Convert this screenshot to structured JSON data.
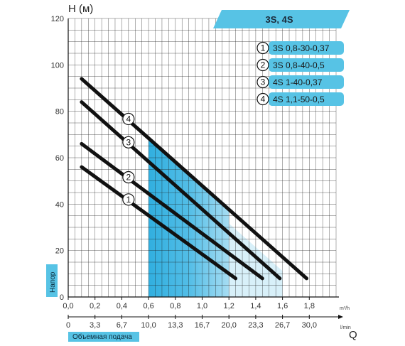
{
  "chart_data": {
    "type": "line",
    "title": "3S, 4S",
    "ylabel": "H (м)",
    "xlabel_side": "Q",
    "x_unit_top": "m³/h",
    "x_unit_bottom": "l/min",
    "ylim": [
      0,
      120
    ],
    "xlim": [
      0,
      2.0
    ],
    "y_ticks": [
      "0",
      "20",
      "40",
      "60",
      "80",
      "100",
      "120"
    ],
    "x_ticks_top": [
      "0,0",
      "0,2",
      "0,4",
      "0,6",
      "0,8",
      "1,0",
      "1,2",
      "1,4",
      "1,6",
      "1,8"
    ],
    "x_ticks_bottom": [
      "0",
      "3,3",
      "6,7",
      "10,0",
      "13,3",
      "16,7",
      "20,0",
      "23,3",
      "26,7",
      "30,0"
    ],
    "y_side_label": "Напор",
    "x_side_label": "Объемная подача",
    "grid": true,
    "series": [
      {
        "id": "1",
        "name": "3S 0,8-30-0,37",
        "x": [
          0.1,
          1.25
        ],
        "y": [
          56,
          8
        ]
      },
      {
        "id": "2",
        "name": "3S 0,8-40-0,5",
        "x": [
          0.1,
          1.45
        ],
        "y": [
          66,
          8
        ]
      },
      {
        "id": "3",
        "name": "4S 1-40-0,37",
        "x": [
          0.1,
          1.58
        ],
        "y": [
          84,
          8
        ]
      },
      {
        "id": "4",
        "name": "4S 1,1-50-0,5",
        "x": [
          0.1,
          1.78
        ],
        "y": [
          94,
          8
        ]
      }
    ]
  }
}
